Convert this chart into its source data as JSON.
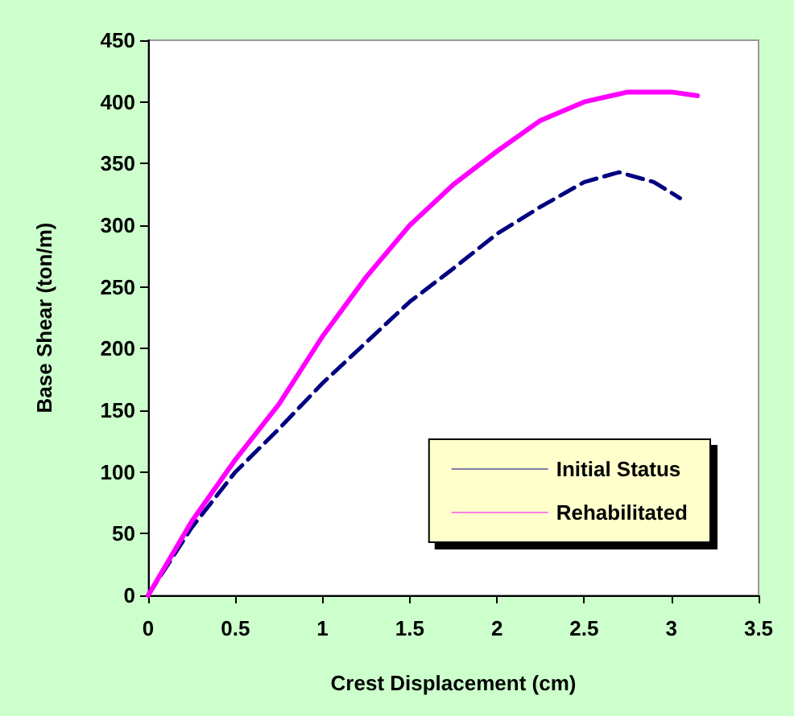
{
  "chart_data": {
    "type": "line",
    "xlabel": "Crest Displacement (cm)",
    "ylabel": "Base Shear (ton/m)",
    "xlim": [
      0,
      3.5
    ],
    "xticks": [
      0,
      0.5,
      1,
      1.5,
      2,
      2.5,
      3,
      3.5
    ],
    "ylim": [
      0,
      450
    ],
    "yticks": [
      0,
      50,
      100,
      150,
      200,
      250,
      300,
      350,
      400,
      450
    ],
    "grid": false,
    "legend": "bottom right",
    "marker": "none",
    "series": [
      {
        "name": "Initial Status",
        "color": "#000080",
        "line_style": "dashed",
        "x": [
          0,
          0.25,
          0.5,
          0.75,
          1,
          1.25,
          1.5,
          1.75,
          2,
          2.25,
          2.5,
          2.7,
          2.9,
          3.05
        ],
        "values": [
          0,
          55,
          100,
          135,
          172,
          205,
          238,
          265,
          293,
          315,
          335,
          343,
          335,
          322
        ]
      },
      {
        "name": "Rehabilitated",
        "color": "#ff00ff",
        "line_style": "solid",
        "x": [
          0,
          0.25,
          0.5,
          0.75,
          1,
          1.25,
          1.5,
          1.75,
          2,
          2.25,
          2.5,
          2.75,
          3,
          3.15
        ],
        "values": [
          0,
          60,
          110,
          155,
          210,
          258,
          300,
          333,
          360,
          385,
          400,
          408,
          408,
          405
        ]
      }
    ]
  }
}
